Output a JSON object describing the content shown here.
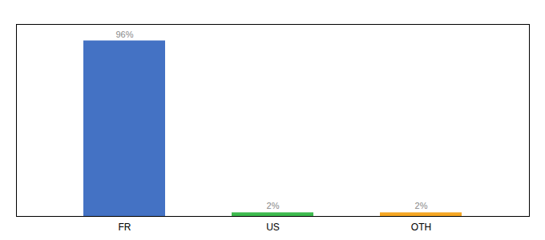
{
  "chart_data": {
    "type": "bar",
    "categories": [
      "FR",
      "US",
      "OTH"
    ],
    "values": [
      96,
      2,
      2
    ],
    "value_labels": [
      "96%",
      "2%",
      "2%"
    ],
    "colors": [
      "#4472c4",
      "#3dba4e",
      "#f5a623"
    ],
    "ylim": [
      0,
      105
    ],
    "data_labels": true,
    "tick_labels": "x",
    "grid": false
  }
}
